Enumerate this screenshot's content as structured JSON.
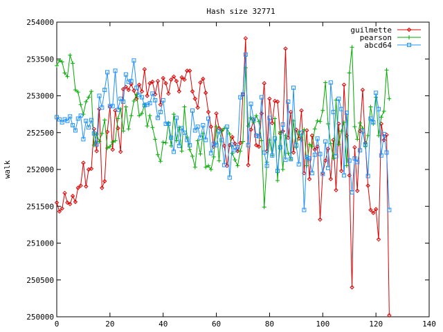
{
  "chart_data": {
    "type": "line",
    "title": "Hash size 32771",
    "xlabel": "",
    "ylabel": "walk",
    "xlim": [
      0,
      140
    ],
    "ylim": [
      250000,
      254000
    ],
    "x_ticks": [
      0,
      20,
      40,
      60,
      80,
      100,
      120,
      140
    ],
    "y_ticks": [
      250000,
      250500,
      251000,
      251500,
      252000,
      252500,
      253000,
      253500,
      254000
    ],
    "x_tick_labels": [
      "0",
      "20",
      "40",
      "60",
      "80",
      "100",
      "120",
      "140"
    ],
    "y_tick_labels": [
      "250000",
      "250500",
      "251000",
      "251500",
      "252000",
      "252500",
      "253000",
      "253500",
      "254000"
    ],
    "grid": false,
    "legend_position": "top-right",
    "series": [
      {
        "name": "guilmette",
        "color": "#dd0000",
        "marker": "diamond",
        "x": [
          0,
          1,
          2,
          3,
          4,
          5,
          6,
          7,
          8,
          9,
          10,
          11,
          12,
          13,
          14,
          15,
          16,
          17,
          18,
          19,
          20,
          21,
          22,
          23,
          24,
          25,
          26,
          27,
          28,
          29,
          30,
          31,
          32,
          33,
          34,
          35,
          36,
          37,
          38,
          39,
          40,
          41,
          42,
          43,
          44,
          45,
          46,
          47,
          48,
          49,
          50,
          51,
          52,
          53,
          54,
          55,
          56,
          57,
          58,
          59,
          60,
          61,
          62,
          63,
          64,
          65,
          66,
          67,
          68,
          69,
          70,
          71,
          72,
          73,
          74,
          75,
          76,
          77,
          78,
          79,
          80,
          81,
          82,
          83,
          84,
          85,
          86,
          87,
          88,
          89,
          90,
          91,
          92,
          93,
          94,
          95,
          96,
          97,
          98,
          99,
          100,
          101,
          102,
          103,
          104,
          105,
          106,
          107,
          108,
          109,
          110,
          111,
          112,
          113,
          114,
          115,
          116,
          117,
          118,
          119,
          120,
          121,
          122,
          123,
          124,
          125
        ],
        "y": [
          251550,
          251430,
          251470,
          251680,
          251550,
          251530,
          251640,
          251560,
          251750,
          251780,
          252090,
          251770,
          252000,
          252010,
          252550,
          252250,
          252820,
          251750,
          251840,
          252510,
          252850,
          252270,
          252800,
          252560,
          252240,
          253090,
          253120,
          253080,
          253160,
          253070,
          252960,
          253150,
          253060,
          253360,
          253000,
          253170,
          253190,
          253020,
          253200,
          252880,
          253240,
          253170,
          253030,
          253220,
          253260,
          253200,
          253060,
          253250,
          253220,
          253340,
          253340,
          253060,
          252960,
          252840,
          253180,
          253230,
          253040,
          252780,
          252580,
          252310,
          252760,
          252560,
          252530,
          252320,
          252050,
          252330,
          252440,
          252350,
          252250,
          252360,
          253020,
          253780,
          252060,
          252540,
          252670,
          252330,
          252310,
          252760,
          253170,
          252250,
          252960,
          252630,
          252930,
          252920,
          252490,
          252520,
          253640,
          252430,
          252780,
          252230,
          252540,
          252420,
          252800,
          251950,
          252530,
          251870,
          252460,
          252270,
          252310,
          251320,
          251950,
          252120,
          252280,
          251870,
          252400,
          251720,
          252620,
          251980,
          253150,
          252460,
          251920,
          250400,
          252300,
          251710,
          252520,
          253080,
          252360,
          251780,
          251450,
          251410,
          251460,
          251050,
          252620,
          252400,
          252470,
          250020
        ]
      },
      {
        "name": "pearson",
        "color": "#00aa00",
        "marker": "plus",
        "x": [
          0,
          1,
          2,
          3,
          4,
          5,
          6,
          7,
          8,
          9,
          10,
          11,
          12,
          13,
          14,
          15,
          16,
          17,
          18,
          19,
          20,
          21,
          22,
          23,
          24,
          25,
          26,
          27,
          28,
          29,
          30,
          31,
          32,
          33,
          34,
          35,
          36,
          37,
          38,
          39,
          40,
          41,
          42,
          43,
          44,
          45,
          46,
          47,
          48,
          49,
          50,
          51,
          52,
          53,
          54,
          55,
          56,
          57,
          58,
          59,
          60,
          61,
          62,
          63,
          64,
          65,
          66,
          67,
          68,
          69,
          70,
          71,
          72,
          73,
          74,
          75,
          76,
          77,
          78,
          79,
          80,
          81,
          82,
          83,
          84,
          85,
          86,
          87,
          88,
          89,
          90,
          91,
          92,
          93,
          94,
          95,
          96,
          97,
          98,
          99,
          100,
          101,
          102,
          103,
          104,
          105,
          106,
          107,
          108,
          109,
          110,
          111,
          112,
          113,
          114,
          115,
          116,
          117,
          118,
          119,
          120,
          121,
          122,
          123,
          124,
          125
        ],
        "y": [
          253410,
          253480,
          253460,
          253310,
          253260,
          253550,
          253440,
          253080,
          253050,
          252880,
          252750,
          252920,
          252980,
          253060,
          252330,
          252480,
          252380,
          252490,
          252670,
          252290,
          252310,
          252370,
          252390,
          252690,
          252820,
          252520,
          252850,
          252550,
          252730,
          252930,
          253020,
          252730,
          252760,
          252880,
          252590,
          252730,
          252570,
          252410,
          252200,
          252110,
          252370,
          252360,
          252630,
          252320,
          252750,
          252390,
          252570,
          252250,
          252850,
          252440,
          252270,
          252180,
          252030,
          252390,
          252210,
          252490,
          252030,
          252050,
          252000,
          252170,
          252580,
          252120,
          252520,
          252560,
          252560,
          252480,
          252220,
          252130,
          252050,
          252250,
          252380,
          253380,
          252590,
          252700,
          252640,
          252730,
          252650,
          252390,
          251490,
          252100,
          252400,
          252190,
          252690,
          251850,
          252510,
          252000,
          252460,
          252220,
          252140,
          252660,
          252300,
          252510,
          252400,
          252540,
          252050,
          252340,
          252310,
          252550,
          252660,
          252650,
          252800,
          253180,
          252620,
          252350,
          252150,
          252940,
          252340,
          252520,
          252640,
          252050,
          253310,
          253660,
          252580,
          252410,
          252630,
          252560,
          252310,
          252460,
          252850,
          252620,
          252980,
          252460,
          252710,
          252790,
          253350,
          252960
        ]
      },
      {
        "name": "abcd64",
        "color": "#1e90ff",
        "marker": "square",
        "x": [
          0,
          1,
          2,
          3,
          4,
          5,
          6,
          7,
          8,
          9,
          10,
          11,
          12,
          13,
          14,
          15,
          16,
          17,
          18,
          19,
          20,
          21,
          22,
          23,
          24,
          25,
          26,
          27,
          28,
          29,
          30,
          31,
          32,
          33,
          34,
          35,
          36,
          37,
          38,
          39,
          40,
          41,
          42,
          43,
          44,
          45,
          46,
          47,
          48,
          49,
          50,
          51,
          52,
          53,
          54,
          55,
          56,
          57,
          58,
          59,
          60,
          61,
          62,
          63,
          64,
          65,
          66,
          67,
          68,
          69,
          70,
          71,
          72,
          73,
          74,
          75,
          76,
          77,
          78,
          79,
          80,
          81,
          82,
          83,
          84,
          85,
          86,
          87,
          88,
          89,
          90,
          91,
          92,
          93,
          94,
          95,
          96,
          97,
          98,
          99,
          100,
          101,
          102,
          103,
          104,
          105,
          106,
          107,
          108,
          109,
          110,
          111,
          112,
          113,
          114,
          115,
          116,
          117,
          118,
          119,
          120,
          121,
          122,
          123,
          124,
          125
        ],
        "y": [
          252710,
          252680,
          252640,
          252680,
          252660,
          252720,
          252600,
          252530,
          252690,
          252730,
          252410,
          252660,
          252570,
          252670,
          252490,
          252340,
          253000,
          252840,
          253080,
          253320,
          252860,
          252860,
          253340,
          252810,
          252960,
          252920,
          253290,
          253190,
          253200,
          253480,
          253110,
          253010,
          252980,
          252870,
          252880,
          252900,
          253030,
          252940,
          252700,
          252780,
          252940,
          252620,
          252620,
          252430,
          252240,
          252700,
          252320,
          252560,
          252500,
          252400,
          252330,
          252800,
          252530,
          252580,
          252430,
          252600,
          252400,
          252690,
          252220,
          252350,
          252330,
          252520,
          252400,
          252060,
          252580,
          251890,
          252340,
          252260,
          252300,
          252980,
          253020,
          253560,
          252330,
          252890,
          252680,
          252460,
          252450,
          252980,
          252230,
          252050,
          252700,
          252190,
          252420,
          251980,
          252300,
          252610,
          252130,
          252920,
          252140,
          253110,
          252330,
          252070,
          252500,
          251450,
          252170,
          252150,
          251950,
          252200,
          252420,
          252210,
          251940,
          252380,
          252020,
          253180,
          252780,
          252180,
          252960,
          252820,
          251920,
          252770,
          252120,
          251690,
          252150,
          252100,
          252260,
          252520,
          252340,
          251910,
          252690,
          252640,
          253040,
          252820,
          252190,
          252480,
          252230,
          251450
        ]
      }
    ]
  }
}
